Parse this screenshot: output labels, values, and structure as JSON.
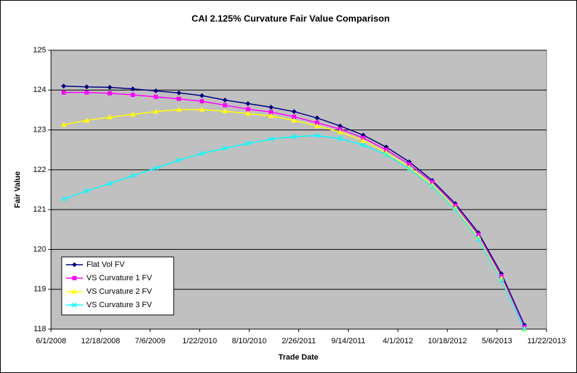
{
  "chart_data": {
    "type": "line",
    "title": "CAI 2.125% Curvature Fair Value Comparison",
    "x_label": "Trade Date",
    "y_label": "Fair Value",
    "x": [
      "7/22/2008",
      "10/23/2008",
      "1/24/2009",
      "4/27/2009",
      "7/29/2009",
      "10/30/2009",
      "1/31/2010",
      "5/4/2010",
      "8/5/2010",
      "11/6/2010",
      "2/7/2011",
      "5/11/2011",
      "8/12/2011",
      "11/13/2011",
      "2/14/2012",
      "5/17/2012",
      "8/18/2012",
      "11/19/2012",
      "2/20/2013",
      "5/24/2013",
      "8/25/2013"
    ],
    "series": [
      {
        "name": "Flat Vol FV",
        "color": "#000080",
        "marker": "diamond",
        "values": [
          124.1,
          124.08,
          124.07,
          124.03,
          123.98,
          123.93,
          123.86,
          123.75,
          123.66,
          123.57,
          123.46,
          123.3,
          123.1,
          122.87,
          122.57,
          122.2,
          121.73,
          121.15,
          120.42,
          119.39,
          118.1
        ]
      },
      {
        "name": "VS Curvature 1 FV",
        "color": "#ff00ff",
        "marker": "square",
        "values": [
          123.94,
          123.94,
          123.92,
          123.88,
          123.83,
          123.78,
          123.72,
          123.62,
          123.52,
          123.45,
          123.33,
          123.18,
          123.02,
          122.8,
          122.5,
          122.14,
          121.69,
          121.1,
          120.37,
          119.33,
          118.05
        ]
      },
      {
        "name": "VS Curvature 2 FV",
        "color": "#ffff00",
        "marker": "triangle",
        "values": [
          123.13,
          123.24,
          123.32,
          123.39,
          123.46,
          123.51,
          123.51,
          123.47,
          123.41,
          123.35,
          123.24,
          123.1,
          122.95,
          122.73,
          122.43,
          122.06,
          121.62,
          121.04,
          120.3,
          119.27,
          118.0
        ]
      },
      {
        "name": "VS Curvature 3 FV",
        "color": "#00ffff",
        "marker": "x",
        "values": [
          121.26,
          121.47,
          121.65,
          121.85,
          122.04,
          122.24,
          122.41,
          122.54,
          122.66,
          122.77,
          122.83,
          122.86,
          122.78,
          122.62,
          122.38,
          122.02,
          121.58,
          121.0,
          120.26,
          119.22,
          118.0
        ]
      }
    ],
    "xlim": [
      "6/1/2008",
      "11/22/2013"
    ],
    "xticks": [
      "6/1/2008",
      "12/18/2008",
      "7/6/2009",
      "1/22/2010",
      "8/10/2010",
      "2/26/2011",
      "9/14/2011",
      "4/1/2012",
      "10/18/2012",
      "5/6/2013",
      "11/22/2013"
    ],
    "ylim": [
      118,
      125
    ],
    "yticks": [
      118,
      119,
      120,
      121,
      122,
      123,
      124,
      125
    ],
    "grid": true,
    "legend": "lower-left",
    "plot_background": "#c0c0c0"
  }
}
